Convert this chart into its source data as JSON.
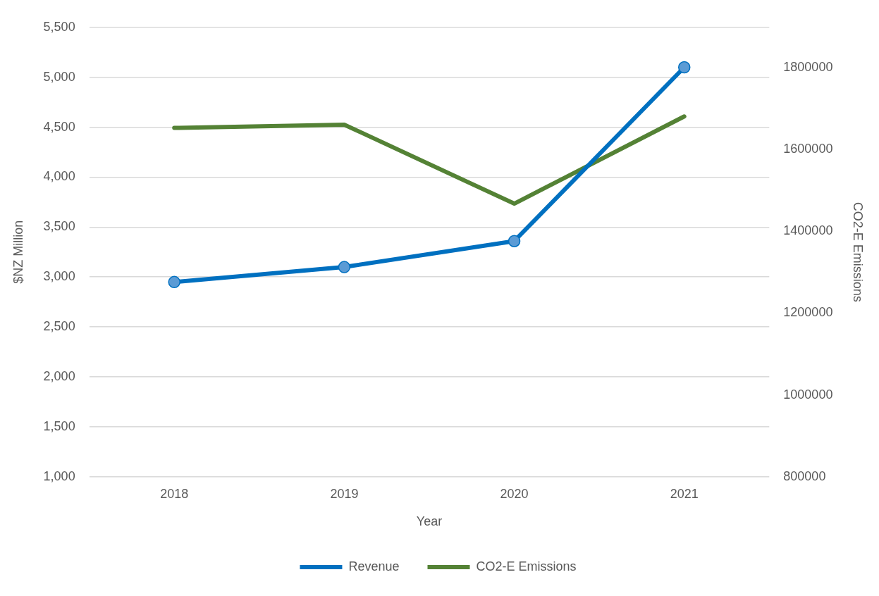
{
  "chart_data": {
    "type": "line",
    "categories": [
      "2018",
      "2019",
      "2020",
      "2021"
    ],
    "xlabel": "Year",
    "ylabel": "$NZ Million",
    "y2label": "CO2-E Emissions",
    "series": [
      {
        "name": "Revenue",
        "color": "#0070c0",
        "values": [
          2950,
          3100,
          3360,
          5100
        ],
        "marker": "circle"
      },
      {
        "name": "CO2-E Emissions",
        "color": "#548235",
        "values": [
          1652000,
          1660000,
          1467000,
          1680000
        ],
        "axis": "y2",
        "marker": "none"
      }
    ],
    "ylim": [
      1000,
      5500
    ],
    "yticks": [
      {
        "value": 1000,
        "label": "1,000"
      },
      {
        "value": 1500,
        "label": "1,500"
      },
      {
        "value": 2000,
        "label": "2,000"
      },
      {
        "value": 2500,
        "label": "2,500"
      },
      {
        "value": 3000,
        "label": "3,000"
      },
      {
        "value": 3500,
        "label": "3,500"
      },
      {
        "value": 4000,
        "label": "4,000"
      },
      {
        "value": 4500,
        "label": "4,500"
      },
      {
        "value": 5000,
        "label": "5,000"
      },
      {
        "value": 5500,
        "label": "5,500"
      }
    ],
    "y2lim": [
      800000,
      1897600
    ],
    "y2ticks": [
      800000,
      1000000,
      1200000,
      1400000,
      1600000,
      1800000
    ],
    "grid": "y",
    "legend": "bottom",
    "line_style": "solid"
  }
}
